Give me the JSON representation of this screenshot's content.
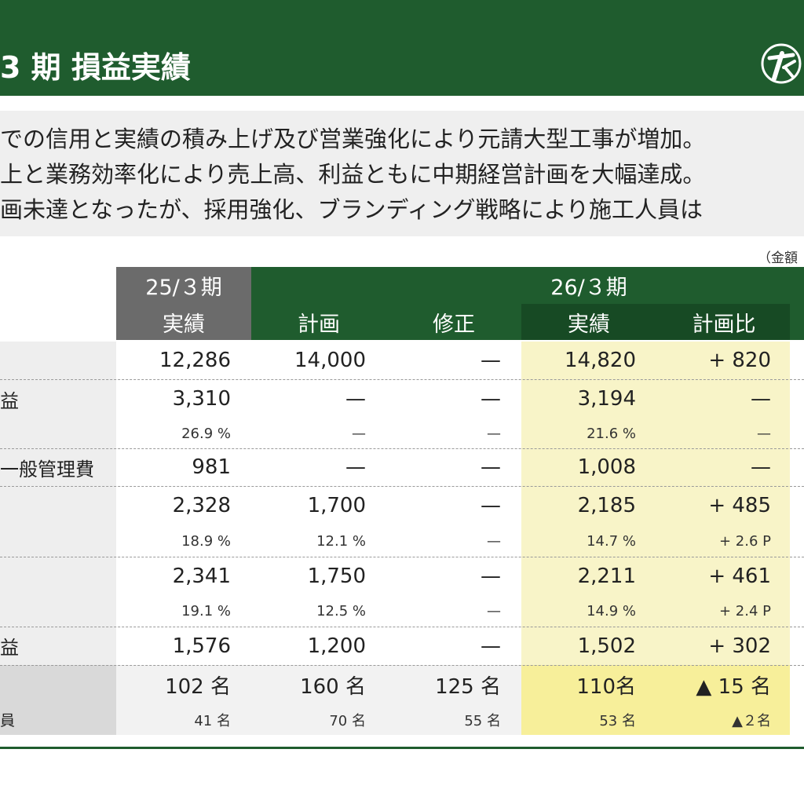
{
  "header": {
    "title": "3 期 損益実績"
  },
  "summary": {
    "lines": [
      "での信用と実績の積み上げ及び営業強化により元請大型工事が増加。",
      "上と業務効率化により売上高、利益ともに中期経営計画を大幅達成。",
      "画未達となったが、採用強化、ブランディング戦略により施工人員は"
    ]
  },
  "unit_note": "（金額",
  "table": {
    "period_25": "25/３期",
    "period_26": "26/３期",
    "columns": [
      "実績",
      "計画",
      "修正",
      "実績",
      "計画比"
    ],
    "rows": [
      {
        "label": "",
        "values": [
          "12,286",
          "14,000",
          "—",
          "14,820",
          "+ 820"
        ]
      },
      {
        "label": "益",
        "values": [
          "3,310",
          "—",
          "—",
          "3,194",
          "—"
        ]
      },
      {
        "label": "",
        "values": [
          "26.9 %",
          "—",
          "—",
          "21.6 %",
          "—"
        ]
      },
      {
        "label": "一般管理費",
        "values": [
          "981",
          "—",
          "—",
          "1,008",
          "—"
        ]
      },
      {
        "label": "",
        "values": [
          "2,328",
          "1,700",
          "—",
          "2,185",
          "+ 485"
        ]
      },
      {
        "label": "",
        "values": [
          "18.9 %",
          "12.1 %",
          "—",
          "14.7 %",
          "+ 2.6 P"
        ]
      },
      {
        "label": "",
        "values": [
          "2,341",
          "1,750",
          "—",
          "2,211",
          "+ 461"
        ]
      },
      {
        "label": "",
        "values": [
          "19.1 %",
          "12.5 %",
          "—",
          "14.9 %",
          "+ 2.4 P"
        ]
      },
      {
        "label": "益",
        "values": [
          "1,576",
          "1,200",
          "—",
          "1,502",
          "+ 302"
        ]
      },
      {
        "label": "",
        "values": [
          "102 名",
          "160 名",
          "125 名",
          "110名",
          "▲ 15 名"
        ]
      },
      {
        "label": "員",
        "values": [
          "41 名",
          "70 名",
          "55 名",
          "53 名",
          "▲２名"
        ]
      }
    ]
  },
  "colors": {
    "brand_green": "#1f5c2e",
    "header_gray": "#6b6b6b",
    "highlight_yellow": "#f8f4c8"
  }
}
